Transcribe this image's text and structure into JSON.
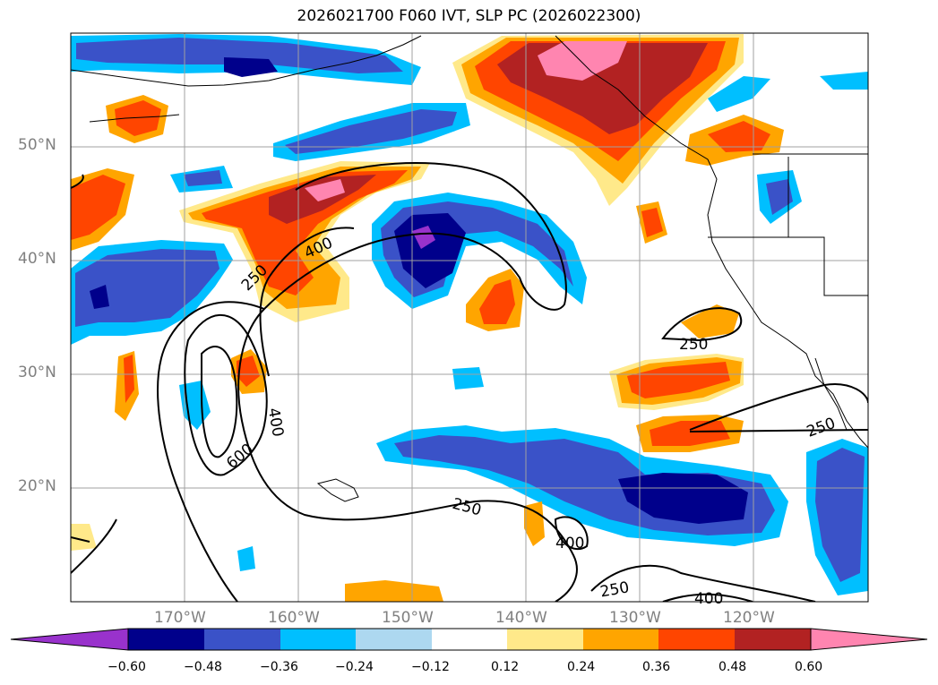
{
  "title": "2026021700 F060 IVT, SLP PC (2026022300)",
  "lat_labels": [
    "50°N",
    "40°N",
    "30°N",
    "20°N"
  ],
  "lon_labels": [
    "170°W",
    "160°W",
    "150°W",
    "140°W",
    "130°W",
    "120°W"
  ],
  "colorbar": {
    "ticks": [
      "−0.60",
      "−0.48",
      "−0.36",
      "−0.24",
      "−0.12",
      "0.12",
      "0.24",
      "0.36",
      "0.48",
      "0.60"
    ],
    "colors": [
      "#9932cc",
      "#00008b",
      "#3a52c8",
      "#00bfff",
      "#add8f0",
      "#ffffff",
      "#ffe98a",
      "#ffa500",
      "#ff4500",
      "#b22222",
      "#ff85b0"
    ]
  },
  "contour_labels": [
    "250",
    "400",
    "250",
    "400",
    "600",
    "250",
    "250",
    "400",
    "250",
    "400"
  ],
  "colors": {
    "purple": "#9932cc",
    "navy": "#00008b",
    "blue": "#3a52c8",
    "cyan": "#00bfff",
    "lightblue": "#add8f0",
    "yellow": "#ffe98a",
    "orange": "#ffa500",
    "redorange": "#ff4500",
    "darkred": "#b22222",
    "pink": "#ff85b0"
  }
}
